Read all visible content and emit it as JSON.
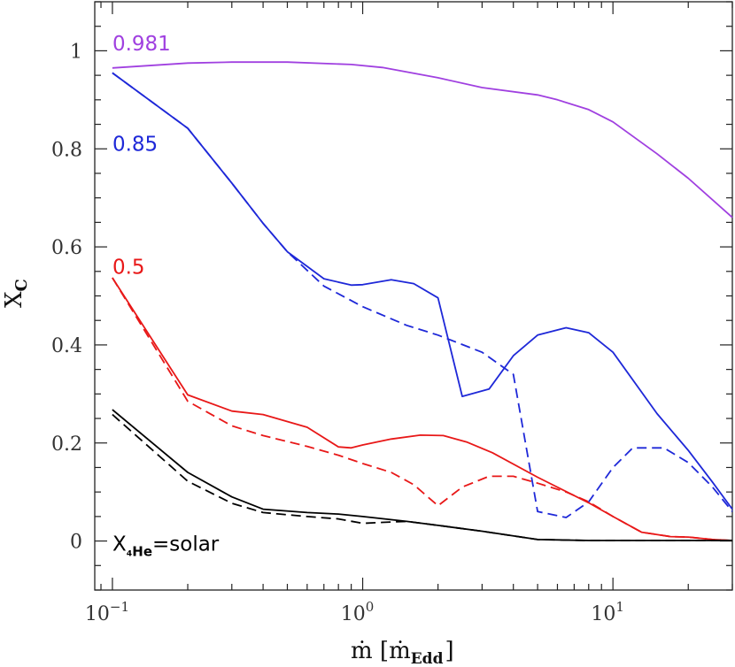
{
  "chart_data": {
    "type": "line",
    "title": "",
    "xlabel": "ṁ [ṁ",
    "xlabel_sub": "Edd",
    "xlabel_close": "]",
    "ylabel": "X",
    "ylabel_sub": "C",
    "xscale": "log",
    "xlim": [
      0.085,
      30
    ],
    "ylim": [
      -0.1,
      1.1
    ],
    "grid": false,
    "x_ticks": [
      {
        "value": 0.1,
        "base": "10",
        "exp": "−1"
      },
      {
        "value": 1,
        "base": "10",
        "exp": "0"
      },
      {
        "value": 10,
        "base": "10",
        "exp": "1"
      }
    ],
    "y_ticks": [
      {
        "value": 0,
        "label": "0"
      },
      {
        "value": 0.2,
        "label": "0.2"
      },
      {
        "value": 0.4,
        "label": "0.4"
      },
      {
        "value": 0.6,
        "label": "0.6"
      },
      {
        "value": 0.8,
        "label": "0.8"
      },
      {
        "value": 1,
        "label": "1"
      }
    ],
    "series": [
      {
        "name": "0.981",
        "color": "#a040e0",
        "style": "solid",
        "x": [
          0.1,
          0.2,
          0.3,
          0.5,
          0.9,
          1.2,
          2,
          3,
          5,
          6,
          8,
          10,
          15,
          20,
          30
        ],
        "y": [
          0.965,
          0.975,
          0.977,
          0.977,
          0.972,
          0.966,
          0.945,
          0.925,
          0.91,
          0.9,
          0.88,
          0.855,
          0.79,
          0.74,
          0.66
        ]
      },
      {
        "name": "0.85",
        "color": "#1e28d8",
        "style": "solid",
        "x": [
          0.1,
          0.2,
          0.3,
          0.4,
          0.5,
          0.7,
          0.9,
          1,
          1.3,
          1.6,
          2,
          2.5,
          3.2,
          4,
          5,
          6.5,
          8,
          10,
          15,
          20,
          25,
          30
        ],
        "y": [
          0.955,
          0.842,
          0.73,
          0.648,
          0.59,
          0.535,
          0.522,
          0.523,
          0.533,
          0.525,
          0.496,
          0.295,
          0.31,
          0.378,
          0.42,
          0.435,
          0.425,
          0.385,
          0.26,
          0.185,
          0.12,
          0.065
        ]
      },
      {
        "name": "",
        "color": "#1e28d8",
        "style": "dashed",
        "x": [
          0.1,
          0.2,
          0.3,
          0.4,
          0.5,
          0.7,
          1,
          1.5,
          2,
          3,
          4,
          5,
          6.5,
          8,
          10,
          12,
          16,
          20,
          25,
          30
        ],
        "y": [
          0.955,
          0.842,
          0.73,
          0.648,
          0.59,
          0.52,
          0.478,
          0.44,
          0.42,
          0.385,
          0.34,
          0.06,
          0.048,
          0.08,
          0.15,
          0.19,
          0.19,
          0.16,
          0.11,
          0.06
        ]
      },
      {
        "name": "0.5",
        "color": "#e81818",
        "style": "solid",
        "x": [
          0.1,
          0.2,
          0.3,
          0.4,
          0.6,
          0.8,
          0.9,
          1,
          1.3,
          1.7,
          2.1,
          2.6,
          3.3,
          5,
          8,
          10,
          13,
          17,
          20,
          25,
          30
        ],
        "y": [
          0.537,
          0.298,
          0.265,
          0.258,
          0.232,
          0.192,
          0.19,
          0.196,
          0.208,
          0.216,
          0.215,
          0.202,
          0.18,
          0.13,
          0.078,
          0.05,
          0.018,
          0.009,
          0.008,
          0.003,
          0.001
        ]
      },
      {
        "name": "",
        "color": "#e81818",
        "style": "dashed",
        "x": [
          0.1,
          0.2,
          0.3,
          0.4,
          0.6,
          0.8,
          1,
          1.3,
          1.6,
          2,
          2.5,
          3.2,
          4,
          5,
          6.5,
          8,
          10,
          13,
          17,
          20,
          25,
          30
        ],
        "y": [
          0.537,
          0.285,
          0.235,
          0.215,
          0.193,
          0.175,
          0.158,
          0.14,
          0.115,
          0.072,
          0.11,
          0.132,
          0.132,
          0.118,
          0.1,
          0.08,
          0.05,
          0.018,
          0.009,
          0.008,
          0.003,
          0.001
        ]
      },
      {
        "name": "X₄He=solar",
        "color": "#000000",
        "style": "solid",
        "x": [
          0.1,
          0.2,
          0.3,
          0.4,
          0.6,
          0.8,
          1,
          1.5,
          2,
          3,
          5,
          8,
          10,
          15,
          20,
          30
        ],
        "y": [
          0.268,
          0.14,
          0.09,
          0.065,
          0.058,
          0.055,
          0.05,
          0.04,
          0.032,
          0.02,
          0.003,
          0.001,
          0.001,
          0.001,
          0.001,
          0.001
        ]
      },
      {
        "name": "",
        "color": "#000000",
        "style": "dashed",
        "x": [
          0.1,
          0.2,
          0.3,
          0.4,
          0.6,
          0.8,
          1,
          1.2,
          1.5,
          2,
          3,
          5,
          8,
          10,
          15,
          20,
          30
        ],
        "y": [
          0.258,
          0.122,
          0.077,
          0.058,
          0.05,
          0.045,
          0.036,
          0.038,
          0.04,
          0.032,
          0.02,
          0.003,
          0.001,
          0.001,
          0.001,
          0.001,
          0.001
        ]
      }
    ],
    "annotations": [
      {
        "text": "0.981",
        "color": "#a040e0",
        "x": 0.1,
        "y": 1.015
      },
      {
        "text": "0.85",
        "color": "#1e28d8",
        "x": 0.1,
        "y": 0.81
      },
      {
        "text": "0.5",
        "color": "#e81818",
        "x": 0.1,
        "y": 0.56
      },
      {
        "text": "X",
        "sub": "₄He",
        "rest": "=solar",
        "color": "#000000",
        "x": 0.1,
        "y": -0.005
      }
    ]
  }
}
